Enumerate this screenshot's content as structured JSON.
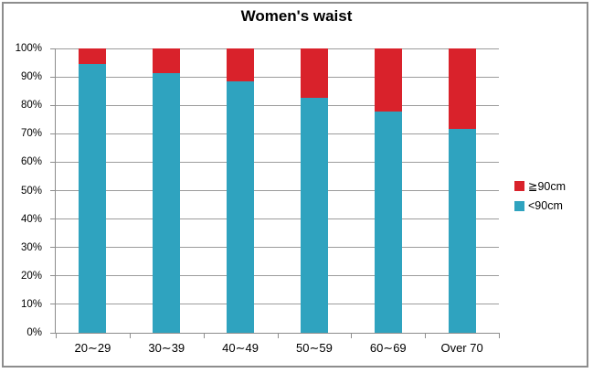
{
  "chart_data": {
    "type": "bar",
    "stacked": true,
    "title": "Women's waist",
    "categories": [
      "20∼29",
      "30∼39",
      "40∼49",
      "50∼59",
      "60∼69",
      "Over 70"
    ],
    "series": [
      {
        "name": "≧90cm",
        "color": "#d9222b",
        "values": [
          5.5,
          8.7,
          11.6,
          17.4,
          22.3,
          28.3
        ]
      },
      {
        "name": "<90cm",
        "color": "#2fa3bf",
        "values": [
          94.5,
          91.3,
          88.4,
          82.6,
          77.7,
          71.7
        ]
      }
    ],
    "y_ticks": [
      "100%",
      "90%",
      "80%",
      "70%",
      "60%",
      "50%",
      "40%",
      "30%",
      "20%",
      "10%",
      "0%"
    ],
    "ylim": [
      0,
      100
    ],
    "unit": "%",
    "grid": true,
    "legend_position": "right",
    "colors": {
      "gridline": "#9c9c9c",
      "axis": "#8d8d8d",
      "border": "#8d8d8d",
      "text": "#000000"
    }
  }
}
